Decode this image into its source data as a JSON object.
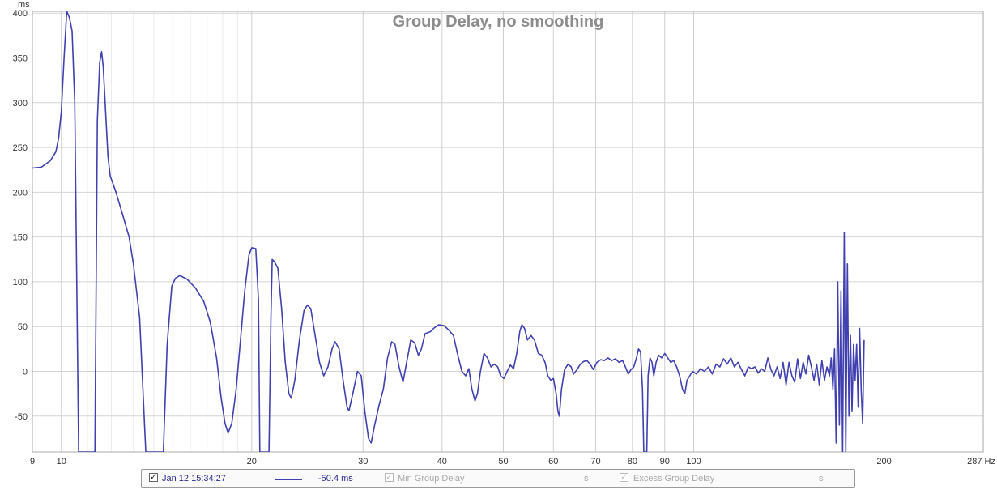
{
  "chart_data": {
    "type": "line",
    "title": "Group Delay, no smoothing",
    "ylabel": "ms",
    "xlabel": "",
    "x_scale": "log",
    "xlim": [
      9,
      287
    ],
    "ylim": [
      -90,
      402
    ],
    "grid": true,
    "x_ticks": [
      9,
      10,
      20,
      30,
      40,
      50,
      60,
      70,
      80,
      90,
      100,
      200
    ],
    "x_tick_labels": [
      "9",
      "10",
      "20",
      "30",
      "40",
      "50",
      "60",
      "70",
      "80",
      "90",
      "100",
      "200"
    ],
    "x_end_label": "287 Hz",
    "y_ticks": [
      400,
      350,
      300,
      250,
      200,
      150,
      100,
      50,
      0,
      -50
    ],
    "series": [
      {
        "color": "#4040b0",
        "points": [
          [
            9.0,
            227
          ],
          [
            9.3,
            228
          ],
          [
            9.6,
            235
          ],
          [
            9.8,
            245
          ],
          [
            9.9,
            260
          ],
          [
            10.0,
            290
          ],
          [
            10.1,
            350
          ],
          [
            10.2,
            402
          ],
          [
            10.3,
            395
          ],
          [
            10.4,
            380
          ],
          [
            10.5,
            300
          ],
          [
            10.65,
            -90
          ],
          [
            11.3,
            -90
          ],
          [
            11.4,
            280
          ],
          [
            11.5,
            345
          ],
          [
            11.58,
            357
          ],
          [
            11.65,
            340
          ],
          [
            11.75,
            290
          ],
          [
            11.85,
            240
          ],
          [
            11.95,
            218
          ],
          [
            12.2,
            200
          ],
          [
            12.5,
            175
          ],
          [
            12.8,
            150
          ],
          [
            13.0,
            120
          ],
          [
            13.3,
            60
          ],
          [
            13.6,
            -90
          ],
          [
            14.5,
            -90
          ],
          [
            14.7,
            30
          ],
          [
            14.95,
            95
          ],
          [
            15.15,
            104
          ],
          [
            15.4,
            107
          ],
          [
            15.8,
            103
          ],
          [
            16.3,
            93
          ],
          [
            16.8,
            78
          ],
          [
            17.2,
            55
          ],
          [
            17.6,
            15
          ],
          [
            17.9,
            -30
          ],
          [
            18.15,
            -58
          ],
          [
            18.35,
            -69
          ],
          [
            18.6,
            -58
          ],
          [
            18.9,
            -20
          ],
          [
            19.2,
            35
          ],
          [
            19.5,
            90
          ],
          [
            19.8,
            130
          ],
          [
            20.0,
            138
          ],
          [
            20.3,
            137
          ],
          [
            20.5,
            80
          ],
          [
            20.6,
            -90
          ],
          [
            21.3,
            -90
          ],
          [
            21.45,
            60
          ],
          [
            21.55,
            125
          ],
          [
            21.75,
            122
          ],
          [
            22.0,
            115
          ],
          [
            22.3,
            70
          ],
          [
            22.6,
            10
          ],
          [
            22.9,
            -25
          ],
          [
            23.1,
            -30
          ],
          [
            23.4,
            -10
          ],
          [
            23.8,
            35
          ],
          [
            24.2,
            68
          ],
          [
            24.5,
            74
          ],
          [
            24.8,
            70
          ],
          [
            25.2,
            40
          ],
          [
            25.6,
            10
          ],
          [
            26.0,
            -5
          ],
          [
            26.4,
            5
          ],
          [
            26.8,
            25
          ],
          [
            27.1,
            33
          ],
          [
            27.5,
            25
          ],
          [
            27.9,
            -10
          ],
          [
            28.3,
            -40
          ],
          [
            28.5,
            -44
          ],
          [
            28.9,
            -25
          ],
          [
            29.4,
            0
          ],
          [
            29.8,
            -5
          ],
          [
            30.2,
            -45
          ],
          [
            30.6,
            -75
          ],
          [
            30.9,
            -80
          ],
          [
            31.3,
            -60
          ],
          [
            31.8,
            -38
          ],
          [
            32.3,
            -20
          ],
          [
            32.8,
            15
          ],
          [
            33.3,
            33
          ],
          [
            33.7,
            30
          ],
          [
            34.2,
            5
          ],
          [
            34.7,
            -12
          ],
          [
            35.2,
            12
          ],
          [
            35.7,
            35
          ],
          [
            36.2,
            32
          ],
          [
            36.7,
            18
          ],
          [
            37.1,
            25
          ],
          [
            37.6,
            42
          ],
          [
            38.3,
            44
          ],
          [
            38.8,
            48
          ],
          [
            39.5,
            52
          ],
          [
            40.3,
            51
          ],
          [
            41.0,
            46
          ],
          [
            41.7,
            40
          ],
          [
            42.3,
            20
          ],
          [
            43.0,
            0
          ],
          [
            43.6,
            -5
          ],
          [
            44.1,
            3
          ],
          [
            44.6,
            -20
          ],
          [
            45.1,
            -33
          ],
          [
            45.5,
            -25
          ],
          [
            46.0,
            0
          ],
          [
            46.6,
            20
          ],
          [
            47.2,
            15
          ],
          [
            47.8,
            5
          ],
          [
            48.4,
            8
          ],
          [
            49.0,
            5
          ],
          [
            49.5,
            -5
          ],
          [
            50.1,
            -8
          ],
          [
            50.7,
            0
          ],
          [
            51.3,
            7
          ],
          [
            51.9,
            3
          ],
          [
            52.5,
            20
          ],
          [
            53.1,
            45
          ],
          [
            53.5,
            52
          ],
          [
            54.0,
            48
          ],
          [
            54.6,
            35
          ],
          [
            55.3,
            40
          ],
          [
            56.0,
            35
          ],
          [
            56.8,
            20
          ],
          [
            57.5,
            18
          ],
          [
            58.2,
            10
          ],
          [
            58.8,
            -5
          ],
          [
            59.4,
            -10
          ],
          [
            60.0,
            -8
          ],
          [
            60.6,
            -25
          ],
          [
            61.0,
            -45
          ],
          [
            61.3,
            -50
          ],
          [
            61.8,
            -20
          ],
          [
            62.5,
            2
          ],
          [
            63.3,
            8
          ],
          [
            64.0,
            5
          ],
          [
            64.6,
            -3
          ],
          [
            65.4,
            2
          ],
          [
            66.2,
            8
          ],
          [
            67.0,
            11
          ],
          [
            67.8,
            12
          ],
          [
            68.6,
            8
          ],
          [
            69.4,
            2
          ],
          [
            70.3,
            10
          ],
          [
            71.3,
            13
          ],
          [
            72.2,
            12
          ],
          [
            73.2,
            15
          ],
          [
            74.2,
            12
          ],
          [
            75.2,
            14
          ],
          [
            76.2,
            10
          ],
          [
            77.2,
            12
          ],
          [
            78.0,
            5
          ],
          [
            78.8,
            -3
          ],
          [
            79.6,
            2
          ],
          [
            80.4,
            5
          ],
          [
            81.2,
            15
          ],
          [
            81.8,
            25
          ],
          [
            82.4,
            22
          ],
          [
            83.0,
            -20
          ],
          [
            83.4,
            -90
          ],
          [
            84.3,
            -90
          ],
          [
            84.7,
            -5
          ],
          [
            85.3,
            15
          ],
          [
            85.9,
            10
          ],
          [
            86.5,
            -5
          ],
          [
            87.2,
            10
          ],
          [
            88.0,
            18
          ],
          [
            89.0,
            15
          ],
          [
            90.0,
            20
          ],
          [
            91.0,
            15
          ],
          [
            92.0,
            10
          ],
          [
            93.0,
            12
          ],
          [
            94.0,
            5
          ],
          [
            95.0,
            -5
          ],
          [
            96.0,
            -20
          ],
          [
            96.8,
            -25
          ],
          [
            97.6,
            -10
          ],
          [
            98.6,
            -5
          ],
          [
            99.6,
            0
          ],
          [
            101.0,
            -3
          ],
          [
            102.5,
            3
          ],
          [
            104.0,
            0
          ],
          [
            105.5,
            5
          ],
          [
            107.0,
            -3
          ],
          [
            108.5,
            8
          ],
          [
            110.0,
            5
          ],
          [
            111.5,
            14
          ],
          [
            113.0,
            8
          ],
          [
            114.5,
            15
          ],
          [
            116.0,
            5
          ],
          [
            117.5,
            10
          ],
          [
            119.0,
            2
          ],
          [
            120.5,
            -5
          ],
          [
            122.0,
            5
          ],
          [
            123.5,
            3
          ],
          [
            125.0,
            5
          ],
          [
            126.5,
            -2
          ],
          [
            128.0,
            3
          ],
          [
            129.5,
            0
          ],
          [
            131.0,
            15
          ],
          [
            132.5,
            2
          ],
          [
            134.0,
            -5
          ],
          [
            135.5,
            5
          ],
          [
            137.0,
            -8
          ],
          [
            138.5,
            10
          ],
          [
            140.0,
            -15
          ],
          [
            141.5,
            10
          ],
          [
            143.0,
            -5
          ],
          [
            144.5,
            -12
          ],
          [
            146.0,
            14
          ],
          [
            147.5,
            -8
          ],
          [
            149.0,
            10
          ],
          [
            150.5,
            -3
          ],
          [
            152.0,
            18
          ],
          [
            153.5,
            5
          ],
          [
            155.0,
            -10
          ],
          [
            156.5,
            8
          ],
          [
            158.0,
            -15
          ],
          [
            159.5,
            12
          ],
          [
            161.0,
            -10
          ],
          [
            162.5,
            5
          ],
          [
            164.0,
            -5
          ],
          [
            165.0,
            15
          ],
          [
            166.0,
            -20
          ],
          [
            167.0,
            25
          ],
          [
            168.0,
            -80
          ],
          [
            169.0,
            100
          ],
          [
            170.0,
            -60
          ],
          [
            171.0,
            90
          ],
          [
            172.0,
            -90
          ],
          [
            173.0,
            155
          ],
          [
            174.0,
            -90
          ],
          [
            175.0,
            120
          ],
          [
            176.0,
            -50
          ],
          [
            177.0,
            40
          ],
          [
            178.0,
            -45
          ],
          [
            179.0,
            30
          ],
          [
            180.0,
            -10
          ],
          [
            181.0,
            30
          ],
          [
            182.0,
            -40
          ],
          [
            183.0,
            48
          ],
          [
            184.0,
            -20
          ],
          [
            185.0,
            -58
          ],
          [
            186.0,
            35
          ]
        ]
      }
    ]
  },
  "legend": {
    "measurement_label": "Jan 12 15:34:27",
    "measurement_checked": true,
    "line_color": "#4040b0",
    "cursor_value": "-50.4 ms",
    "min_group_delay_label": "Min Group Delay",
    "min_group_delay_unit": "s",
    "excess_group_delay_label": "Excess Group Delay",
    "excess_group_delay_unit": "s"
  }
}
